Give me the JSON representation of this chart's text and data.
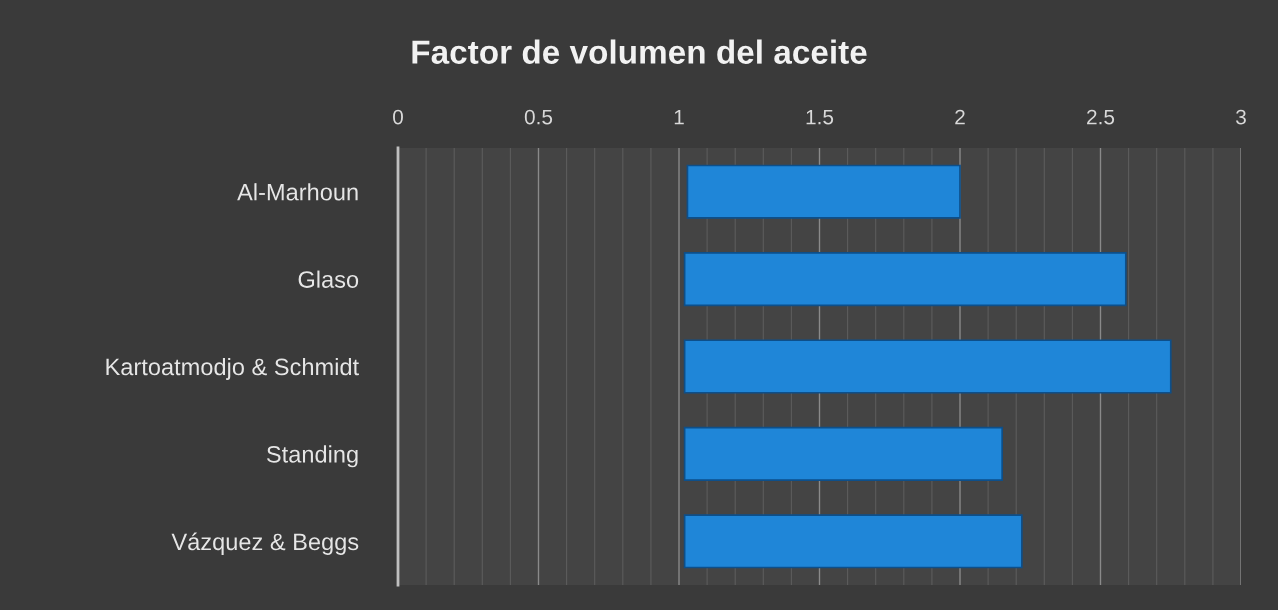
{
  "chart_data": {
    "type": "bar",
    "orientation": "horizontal",
    "title": "Factor de volumen del aceite",
    "categories": [
      "Al-Marhoun",
      "Glaso",
      "Kartoatmodjo & Schmidt",
      "Standing",
      "Vázquez & Beggs"
    ],
    "base": [
      1.03,
      1.02,
      1.02,
      1.02,
      1.02
    ],
    "values": [
      0.97,
      1.57,
      1.73,
      1.13,
      1.2
    ],
    "color": "#1f86d8",
    "xlim": [
      0,
      3
    ],
    "xticks": [
      0,
      {
        "value": 0.1,
        "label": null
      },
      {
        "value": 0.2,
        "label": null
      },
      {
        "value": 0.3,
        "label": null
      },
      {
        "value": 0.4,
        "label": null
      },
      0.5,
      {
        "value": 0.6,
        "label": null
      },
      {
        "value": 0.7,
        "label": null
      },
      {
        "value": 0.8,
        "label": null
      },
      {
        "value": 0.9,
        "label": null
      },
      1,
      {
        "value": 1.1,
        "label": null
      },
      {
        "value": 1.2,
        "label": null
      },
      {
        "value": 1.3,
        "label": null
      },
      {
        "value": 1.4,
        "label": null
      },
      1.5,
      {
        "value": 1.6,
        "label": null
      },
      {
        "value": 1.7,
        "label": null
      },
      {
        "value": 1.8,
        "label": null
      },
      {
        "value": 1.9,
        "label": null
      },
      2,
      {
        "value": 2.1,
        "label": null
      },
      {
        "value": 2.2,
        "label": null
      },
      {
        "value": 2.3,
        "label": null
      },
      {
        "value": 2.4,
        "label": null
      },
      2.5,
      {
        "value": 2.6,
        "label": null
      },
      {
        "value": 2.7,
        "label": null
      },
      {
        "value": 2.8,
        "label": null
      },
      {
        "value": 2.9,
        "label": null
      },
      3
    ],
    "grid": "x"
  }
}
